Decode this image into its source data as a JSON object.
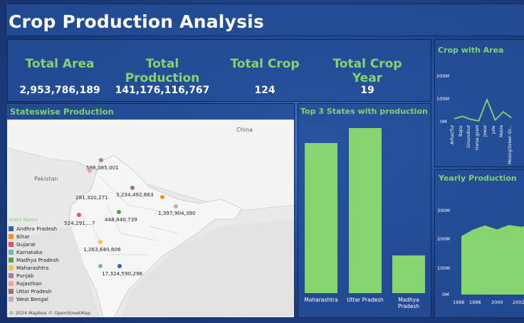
{
  "header": {
    "title": "Crop Production Analysis"
  },
  "kpis": [
    {
      "label": "Total Area",
      "value": "2,953,786,189"
    },
    {
      "label": "Total Production",
      "value": "141,176,116,767"
    },
    {
      "label": "Total Crop",
      "value": "124"
    },
    {
      "label": "Total Crop Year",
      "value": "19"
    }
  ],
  "statewise": {
    "title": "Stateswise Production",
    "map_labels": [
      "China",
      "Pakistan"
    ],
    "legend_title": "State Name",
    "legend": [
      {
        "name": "Andhra Pradesh",
        "color": "#3b63b5"
      },
      {
        "name": "Bihar",
        "color": "#f28e2b"
      },
      {
        "name": "Gujarat",
        "color": "#e15759"
      },
      {
        "name": "Karnataka",
        "color": "#76b7b2"
      },
      {
        "name": "Madhya Pradesh",
        "color": "#59a14f"
      },
      {
        "name": "Maharashtra",
        "color": "#edc948"
      },
      {
        "name": "Punjab",
        "color": "#b07aa1"
      },
      {
        "name": "Rajasthan",
        "color": "#ff9da7"
      },
      {
        "name": "Uttar Pradesh",
        "color": "#9c755f"
      },
      {
        "name": "West Bengal",
        "color": "#bab0ac"
      }
    ],
    "values": [
      "586,385,001",
      "281,320,271",
      "3,234,492,663",
      "1,397,904,390",
      "524,291,...7",
      "448,840,739",
      "1,263,640,606",
      "17,324,590,296"
    ],
    "attribution": "© 2024 Mapbox © OpenStreetMap"
  },
  "top3": {
    "title": "Top 3 States with production",
    "chart_data": {
      "type": "bar",
      "categories": [
        "Maharashtra",
        "Uttar Pradesh",
        "Madhya Pradesh"
      ],
      "values": [
        100,
        110,
        25
      ]
    }
  },
  "crop_area": {
    "title": "Crop with Area",
    "yticks": [
      "200M",
      "100M",
      "0M"
    ],
    "categories": [
      "Arhar/Tur",
      "Bajra",
      "Groundnut",
      "Horse-gram",
      "Jowar",
      "Jute",
      "Maize",
      "Moong(Green Gr..."
    ],
    "chart_data": {
      "type": "line",
      "values": [
        12,
        20,
        10,
        5,
        75,
        8,
        35,
        15
      ]
    }
  },
  "yearly": {
    "title": "Yearly Production",
    "yticks": [
      "300M",
      "200M",
      "100M",
      "0M"
    ],
    "xticks": [
      "1996",
      "1998",
      "2000",
      "2002"
    ],
    "chart_data": {
      "type": "area",
      "values": [
        220,
        245,
        260,
        245,
        262,
        255,
        262
      ]
    }
  }
}
